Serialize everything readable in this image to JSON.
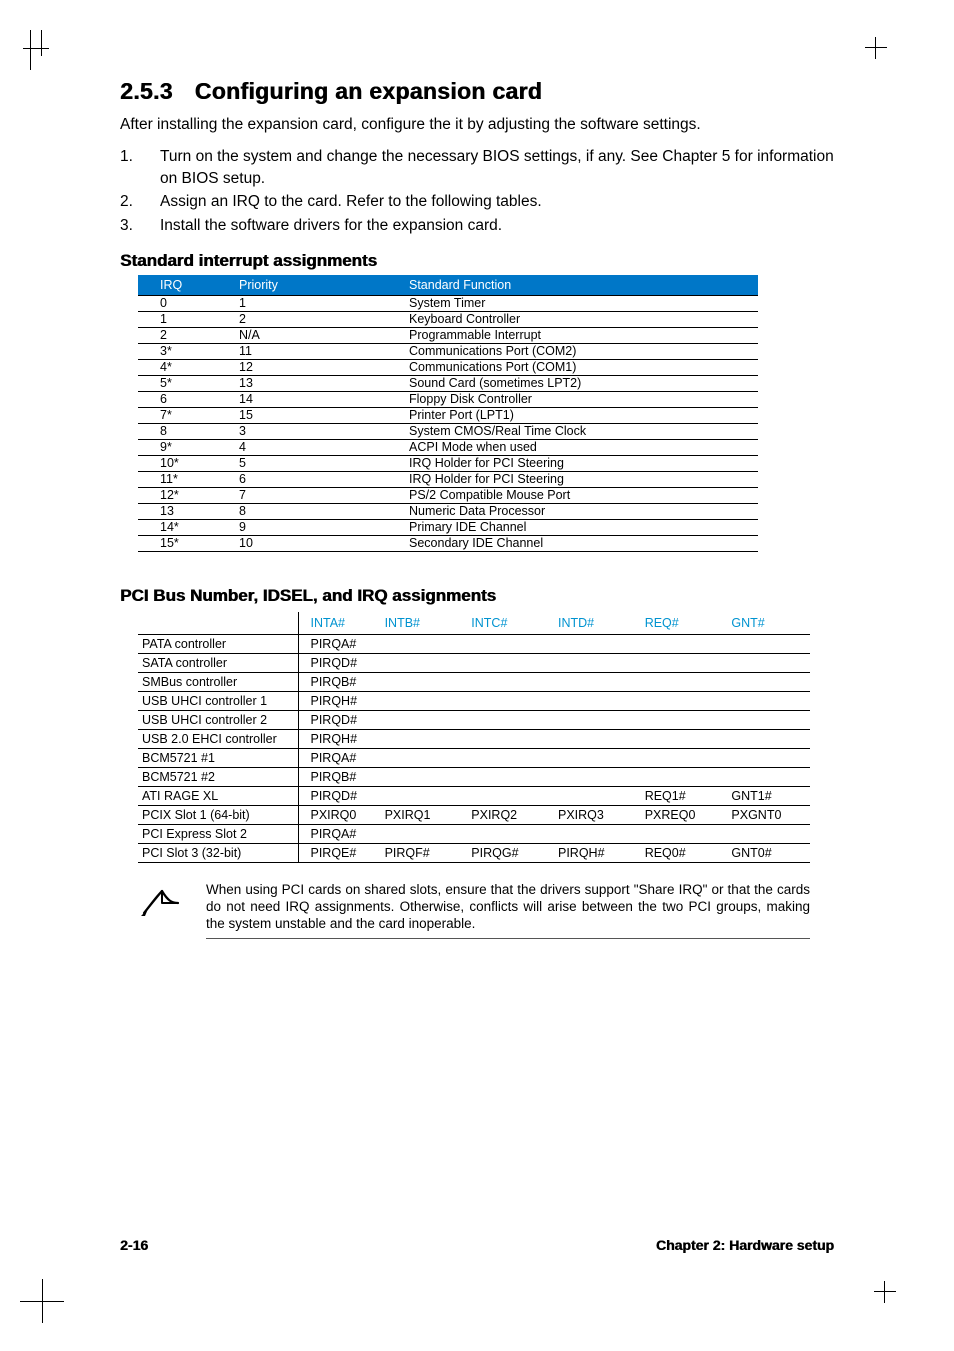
{
  "section": {
    "number": "2.5.3",
    "title": "Configuring an expansion card"
  },
  "intro": "After installing the expansion card, configure the it by adjusting the software settings.",
  "steps": [
    {
      "n": "1.",
      "t": "Turn on the system and change the necessary BIOS settings, if any. See Chapter 5 for information on BIOS setup."
    },
    {
      "n": "2.",
      "t": "Assign an IRQ to the card. Refer to the following tables."
    },
    {
      "n": "3.",
      "t": "Install the software drivers for the expansion card."
    }
  ],
  "subhead1": "Standard interrupt assignments",
  "irq_table": {
    "header_bg": "#0077c8",
    "header_fg": "#ffffff",
    "row_bg": "#ffffff",
    "columns": [
      "IRQ",
      "Priority",
      "Standard Function"
    ],
    "rows": [
      [
        "0",
        "1",
        "System Timer"
      ],
      [
        "1",
        "2",
        "Keyboard Controller"
      ],
      [
        "2",
        "N/A",
        "Programmable Interrupt"
      ],
      [
        "3*",
        "11",
        "Communications Port (COM2)"
      ],
      [
        "4*",
        "12",
        "Communications Port (COM1)"
      ],
      [
        "5*",
        "13",
        "Sound Card (sometimes LPT2)"
      ],
      [
        "6",
        "14",
        "Floppy Disk Controller"
      ],
      [
        "7*",
        "15",
        "Printer Port (LPT1)"
      ],
      [
        "8",
        "3",
        "System CMOS/Real Time Clock"
      ],
      [
        "9*",
        "4",
        "ACPI Mode when used"
      ],
      [
        "10*",
        "5",
        "IRQ Holder for PCI Steering"
      ],
      [
        "11*",
        "6",
        "IRQ Holder for PCI Steering"
      ],
      [
        "12*",
        "7",
        "PS/2 Compatible Mouse Port"
      ],
      [
        "13",
        "8",
        "Numeric Data Processor"
      ],
      [
        "14*",
        "9",
        "Primary IDE Channel"
      ],
      [
        "15*",
        "10",
        "Secondary IDE Channel"
      ]
    ]
  },
  "subhead2": "PCI Bus Number, IDSEL, and IRQ assignments",
  "pci_table": {
    "header_bg": "#ffffff",
    "header_fg": "#0093d0",
    "columns": [
      "",
      "INTA#",
      "INTB#",
      "INTC#",
      "INTD#",
      "REQ#",
      "GNT#"
    ],
    "rows": [
      [
        "PATA controller",
        "PIRQA#",
        "",
        "",
        "",
        "",
        ""
      ],
      [
        "SATA controller",
        "PIRQD#",
        "",
        "",
        "",
        "",
        ""
      ],
      [
        "SMBus controller",
        "PIRQB#",
        "",
        "",
        "",
        "",
        ""
      ],
      [
        "USB UHCI controller 1",
        "PIRQH#",
        "",
        "",
        "",
        "",
        ""
      ],
      [
        "USB UHCI controller 2",
        "PIRQD#",
        "",
        "",
        "",
        "",
        ""
      ],
      [
        "USB 2.0 EHCI controller",
        "PIRQH#",
        "",
        "",
        "",
        "",
        ""
      ],
      [
        "BCM5721 #1",
        "PIRQA#",
        "",
        "",
        "",
        "",
        ""
      ],
      [
        "BCM5721 #2",
        "PIRQB#",
        "",
        "",
        "",
        "",
        ""
      ],
      [
        "ATI RAGE XL",
        "PIRQD#",
        "",
        "",
        "",
        "REQ1#",
        "GNT1#"
      ],
      [
        "PCIX Slot 1 (64-bit)",
        "PXIRQ0",
        "PXIRQ1",
        "PXIRQ2",
        "PXIRQ3",
        "PXREQ0",
        "PXGNT0"
      ],
      [
        "PCI Express Slot 2",
        "PIRQA#",
        "",
        "",
        "",
        "",
        ""
      ],
      [
        "PCI Slot 3 (32-bit)",
        "PIRQE#",
        "PIRQF#",
        "PIRQG#",
        "PIRQH#",
        "REQ0#",
        "GNT0#"
      ]
    ]
  },
  "note": "When using PCI cards on shared slots, ensure that the drivers support \"Share IRQ\" or that the cards do not need IRQ assignments. Otherwise, conflicts will arise between the two PCI groups, making the system unstable and the card inoperable.",
  "footer": {
    "left": "2-16",
    "right": "Chapter 2:  Hardware setup"
  },
  "colors": {
    "header_blue": "#0077c8",
    "header_text": "#ffffff",
    "pci_header_text": "#0093d0",
    "rule": "#000000"
  }
}
